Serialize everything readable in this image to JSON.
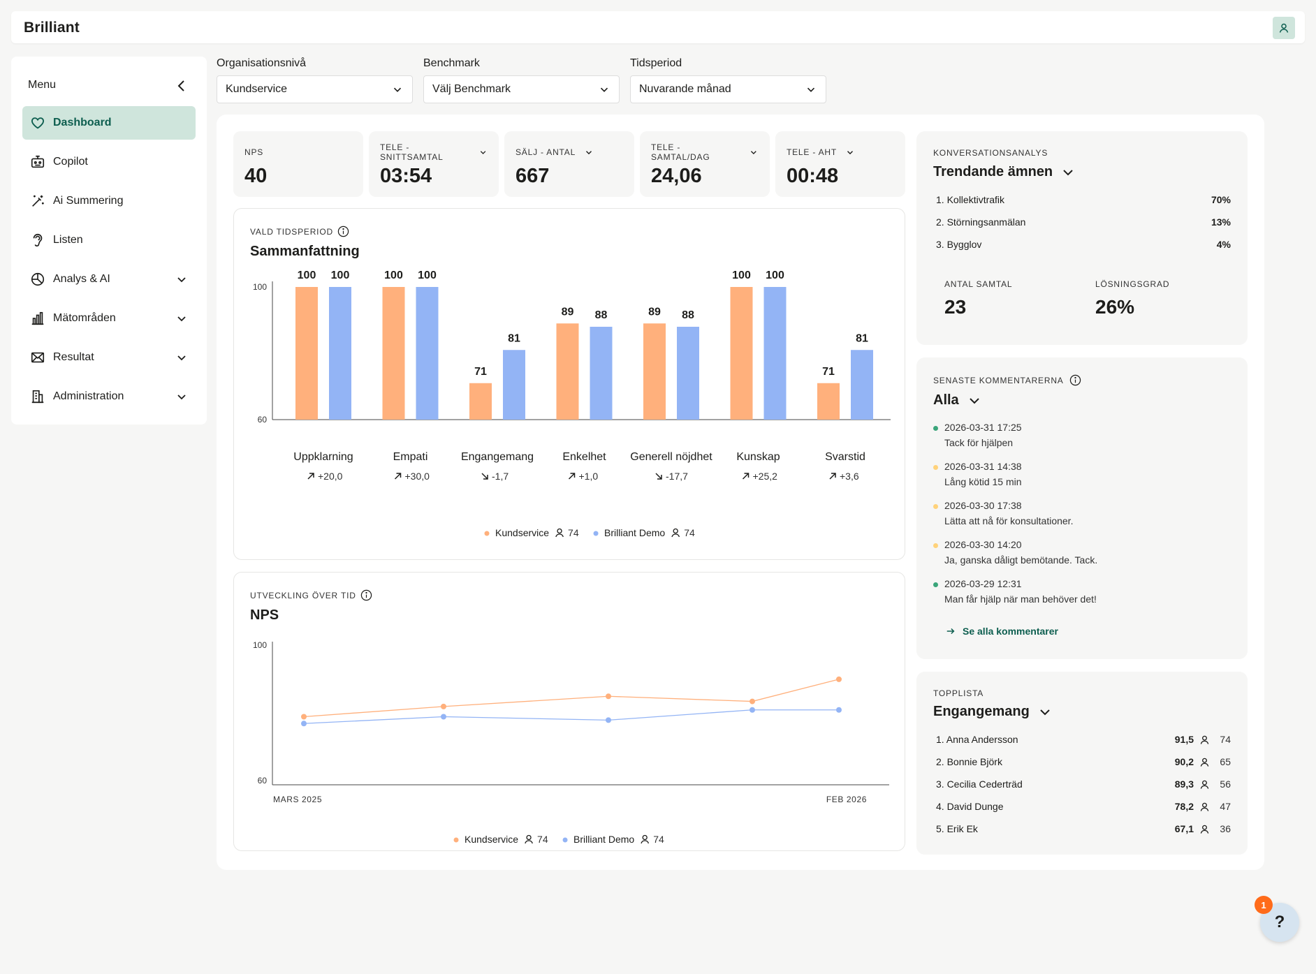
{
  "app": {
    "logo": "Brilliant"
  },
  "sidebar": {
    "title": "Menu",
    "items": [
      {
        "label": "Dashboard",
        "icon": "heart-icon",
        "active": true
      },
      {
        "label": "Copilot",
        "icon": "robot-icon"
      },
      {
        "label": "Ai Summering",
        "icon": "magic-wand-icon"
      },
      {
        "label": "Listen",
        "icon": "ear-icon"
      },
      {
        "label": "Analys & AI",
        "icon": "pie-chart-icon",
        "expandable": true
      },
      {
        "label": "Mätområden",
        "icon": "bar-chart-icon",
        "expandable": true
      },
      {
        "label": "Resultat",
        "icon": "envelope-icon",
        "expandable": true
      },
      {
        "label": "Administration",
        "icon": "building-icon",
        "expandable": true
      }
    ]
  },
  "filters": {
    "org": {
      "label": "Organisationsnivå",
      "value": "Kundservice"
    },
    "benchmark": {
      "label": "Benchmark",
      "value": "Välj Benchmark"
    },
    "period": {
      "label": "Tidsperiod",
      "value": "Nuvarande månad"
    }
  },
  "kpis": [
    {
      "label": "NPS",
      "value": "40",
      "dropdown": false
    },
    {
      "label": "TELE - SNITTSAMTAL",
      "value": "03:54",
      "dropdown": true
    },
    {
      "label": "SÄLJ - ANTAL",
      "value": "667",
      "dropdown": true
    },
    {
      "label": "TELE - SAMTAL/DAG",
      "value": "24,06",
      "dropdown": true
    },
    {
      "label": "TELE - AHT",
      "value": "00:48",
      "dropdown": true
    }
  ],
  "summary": {
    "subtitle": "VALD TIDSPERIOD",
    "title": "Sammanfattning",
    "chart_data": {
      "type": "bar",
      "categories": [
        "Uppklarning",
        "Empati",
        "Engangemang",
        "Enkelhet",
        "Generell nöjdhet",
        "Kunskap",
        "Svarstid"
      ],
      "series": [
        {
          "name": "Kundservice",
          "values": [
            100,
            100,
            71,
            89,
            89,
            100,
            71
          ],
          "color": "#ffb07c"
        },
        {
          "name": "Brilliant Demo",
          "values": [
            100,
            100,
            81,
            88,
            88,
            100,
            81
          ],
          "color": "#93b4f5"
        }
      ],
      "deltas": [
        "+20,0",
        "+30,0",
        "-1,7",
        "+1,0",
        "-17,7",
        "+25,2",
        "+3,6"
      ],
      "delta_dirs": [
        "up",
        "up",
        "down",
        "up",
        "down",
        "up",
        "up"
      ],
      "ylim": [
        60,
        100
      ],
      "yticks": [
        "100",
        "60"
      ]
    },
    "legend": [
      {
        "name": "Kundservice",
        "count": "74",
        "color": "#ffb07c"
      },
      {
        "name": "Brilliant Demo",
        "count": "74",
        "color": "#93b4f5"
      }
    ]
  },
  "development": {
    "subtitle": "UTVECKLING ÖVER TID",
    "title": "NPS",
    "chart_data": {
      "type": "line",
      "x": [
        "MARS 2025",
        "",
        "",
        "",
        "FEB 2026"
      ],
      "xticks": [
        "MARS 2025",
        "FEB 2026"
      ],
      "series": [
        {
          "name": "Kundservice",
          "values": [
            80,
            83,
            86,
            84.5,
            91
          ],
          "color": "#ffb07c"
        },
        {
          "name": "Brilliant Demo",
          "values": [
            78,
            80,
            79,
            82,
            82
          ],
          "color": "#93b4f5"
        }
      ],
      "ylim": [
        60,
        100
      ],
      "yticks": [
        "100",
        "60"
      ]
    },
    "legend": [
      {
        "name": "Kundservice",
        "count": "74",
        "color": "#ffb07c"
      },
      {
        "name": "Brilliant Demo",
        "count": "74",
        "color": "#93b4f5"
      }
    ]
  },
  "conversation": {
    "subtitle": "KONVERSATIONSANALYS",
    "title": "Trendande ämnen",
    "topics": [
      {
        "label": "1. Kollektivtrafik",
        "pct": "70%"
      },
      {
        "label": "2. Störningsanmälan",
        "pct": "13%"
      },
      {
        "label": "3. Bygglov",
        "pct": "4%"
      }
    ],
    "calls_label": "ANTAL SAMTAL",
    "calls_value": "23",
    "resolution_label": "LÖSNINGSGRAD",
    "resolution_value": "26%"
  },
  "comments": {
    "subtitle": "SENASTE KOMMENTARERNA",
    "title": "Alla",
    "items": [
      {
        "time": "2026-03-31 17:25",
        "text": "Tack för hjälpen",
        "color": "#3aa57a"
      },
      {
        "time": "2026-03-31 14:38",
        "text": "Lång kötid 15 min",
        "color": "#ffd27a"
      },
      {
        "time": "2026-03-30 17:38",
        "text": "Lätta att nå för konsultationer.",
        "color": "#ffd27a"
      },
      {
        "time": "2026-03-30 14:20",
        "text": "Ja, ganska dåligt bemötande. Tack.",
        "color": "#ffd27a"
      },
      {
        "time": "2026-03-29 12:31",
        "text": "Man får hjälp när man behöver det!",
        "color": "#3aa57a"
      }
    ],
    "see_all": "Se alla kommentarer"
  },
  "toplist": {
    "subtitle": "TOPPLISTA",
    "title": "Engangemang",
    "items": [
      {
        "name": "1. Anna Andersson",
        "score": "91,5",
        "count": "74"
      },
      {
        "name": "2. Bonnie Björk",
        "score": "90,2",
        "count": "65"
      },
      {
        "name": "3. Cecilia Cederträd",
        "score": "89,3",
        "count": "56"
      },
      {
        "name": "4. David Dunge",
        "score": "78,2",
        "count": "47"
      },
      {
        "name": "5. Erik Ek",
        "score": "67,1",
        "count": "36"
      }
    ]
  },
  "help": {
    "label": "?",
    "badge": "1"
  }
}
